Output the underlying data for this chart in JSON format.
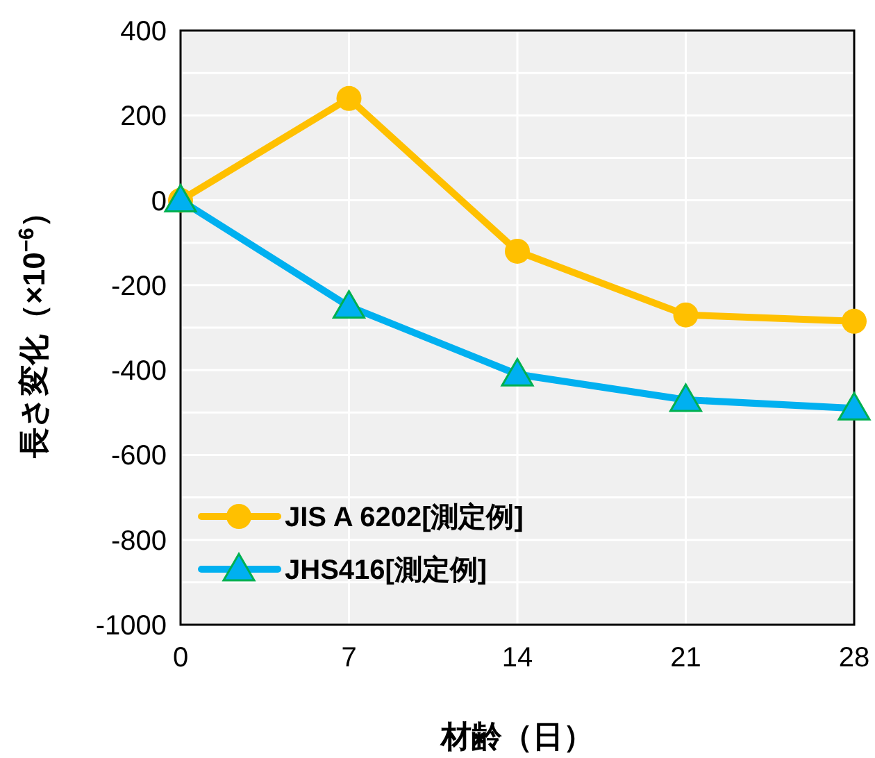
{
  "chart_data": {
    "type": "line",
    "xlabel": "材齢（日）",
    "ylabel": "長さ変化（×10$^{−6}$）",
    "x": [
      0,
      7,
      14,
      21,
      28
    ],
    "series": [
      {
        "name": "JIS A 6202[測定例]",
        "color": "#ffc000",
        "marker": "circle",
        "values": [
          0,
          240,
          -120,
          -270,
          -285
        ]
      },
      {
        "name": "JHS416[測定例]",
        "color": "#00b0f0",
        "marker": "triangle",
        "values": [
          0,
          -250,
          -410,
          -470,
          -490
        ]
      }
    ],
    "xlim": [
      0,
      28
    ],
    "xticks": [
      0,
      7,
      14,
      21,
      28
    ],
    "ylim": [
      -1000,
      400
    ],
    "yticks": [
      -1000,
      {
        "value": -900,
        "label": null
      },
      -800,
      {
        "value": -700,
        "label": null
      },
      -600,
      {
        "value": -500,
        "label": null
      },
      -400,
      {
        "value": -300,
        "label": null
      },
      -200,
      {
        "value": -100,
        "label": null
      },
      0,
      {
        "value": 100,
        "label": null
      },
      200,
      {
        "value": 300,
        "label": null
      },
      400
    ],
    "grid": true,
    "legend": "bottom left",
    "line_style": "solid"
  }
}
